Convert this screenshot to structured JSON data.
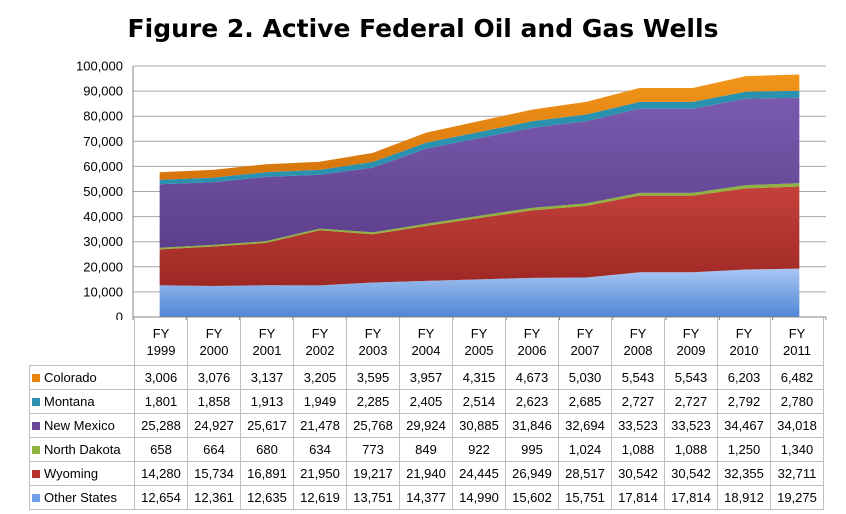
{
  "chart_data": {
    "type": "area",
    "title": "Figure 2. Active Federal Oil and Gas Wells",
    "stacked": true,
    "categories": [
      "FY 1999",
      "FY 2000",
      "FY 2001",
      "FY 2002",
      "FY 2003",
      "FY 2004",
      "FY 2005",
      "FY 2006",
      "FY 2007",
      "FY 2008",
      "FY 2009",
      "FY 2010",
      "FY 2011"
    ],
    "category_lines": [
      [
        "FY",
        "1999"
      ],
      [
        "FY",
        "2000"
      ],
      [
        "FY",
        "2001"
      ],
      [
        "FY",
        "2002"
      ],
      [
        "FY",
        "2003"
      ],
      [
        "FY",
        "2004"
      ],
      [
        "FY",
        "2005"
      ],
      [
        "FY",
        "2006"
      ],
      [
        "FY",
        "2007"
      ],
      [
        "FY",
        "2008"
      ],
      [
        "FY",
        "2009"
      ],
      [
        "FY",
        "2010"
      ],
      [
        "FY",
        "2011"
      ]
    ],
    "ylim": [
      0,
      100000
    ],
    "yticks": [
      "0",
      "10,000",
      "20,000",
      "30,000",
      "40,000",
      "50,000",
      "60,000",
      "70,000",
      "80,000",
      "90,000",
      "100,000"
    ],
    "ytick_values": [
      0,
      10000,
      20000,
      30000,
      40000,
      50000,
      60000,
      70000,
      80000,
      90000,
      100000
    ],
    "legend_placement": "data table",
    "series": [
      {
        "name": "Colorado",
        "color": "#E8850C",
        "values": [
          3006,
          3076,
          3137,
          3205,
          3595,
          3957,
          4315,
          4673,
          5030,
          5543,
          5543,
          6203,
          6482
        ],
        "labels": [
          "3,006",
          "3,076",
          "3,137",
          "3,205",
          "3,595",
          "3,957",
          "4,315",
          "4,673",
          "5,030",
          "5,543",
          "5,543",
          "6,203",
          "6,482"
        ]
      },
      {
        "name": "Montana",
        "color": "#2A92AE",
        "values": [
          1801,
          1858,
          1913,
          1949,
          2285,
          2405,
          2514,
          2623,
          2685,
          2727,
          2727,
          2792,
          2780
        ],
        "labels": [
          "1,801",
          "1,858",
          "1,913",
          "1,949",
          "2,285",
          "2,405",
          "2,514",
          "2,623",
          "2,685",
          "2,727",
          "2,727",
          "2,792",
          "2,780"
        ]
      },
      {
        "name": "New Mexico",
        "color": "#6A4B9B",
        "values": [
          25288,
          24927,
          25617,
          21478,
          25768,
          29924,
          30885,
          31846,
          32694,
          33523,
          33523,
          34467,
          34018
        ],
        "labels": [
          "25,288",
          "24,927",
          "25,617",
          "21,478",
          "25,768",
          "29,924",
          "30,885",
          "31,846",
          "32,694",
          "33,523",
          "33,523",
          "34,467",
          "34,018"
        ]
      },
      {
        "name": "North Dakota",
        "color": "#8FB33E",
        "values": [
          658,
          664,
          680,
          634,
          773,
          849,
          922,
          995,
          1024,
          1088,
          1088,
          1250,
          1340
        ],
        "labels": [
          "658",
          "664",
          "680",
          "634",
          "773",
          "849",
          "922",
          "995",
          "1,024",
          "1,088",
          "1,088",
          "1,250",
          "1,340"
        ]
      },
      {
        "name": "Wyoming",
        "color": "#B8312C",
        "values": [
          14280,
          15734,
          16891,
          21950,
          19217,
          21940,
          24445,
          26949,
          28517,
          30542,
          30542,
          32355,
          32711
        ],
        "labels": [
          "14,280",
          "15,734",
          "16,891",
          "21,950",
          "19,217",
          "21,940",
          "24,445",
          "26,949",
          "28,517",
          "30,542",
          "30,542",
          "32,355",
          "32,711"
        ]
      },
      {
        "name": "Other States",
        "color": "#6F9FE8",
        "values": [
          12654,
          12361,
          12635,
          12619,
          13751,
          14377,
          14990,
          15602,
          15751,
          17814,
          17814,
          18912,
          19275
        ],
        "labels": [
          "12,654",
          "12,361",
          "12,635",
          "12,619",
          "13,751",
          "14,377",
          "14,990",
          "15,602",
          "15,751",
          "17,814",
          "17,814",
          "18,912",
          "19,275"
        ]
      }
    ]
  }
}
